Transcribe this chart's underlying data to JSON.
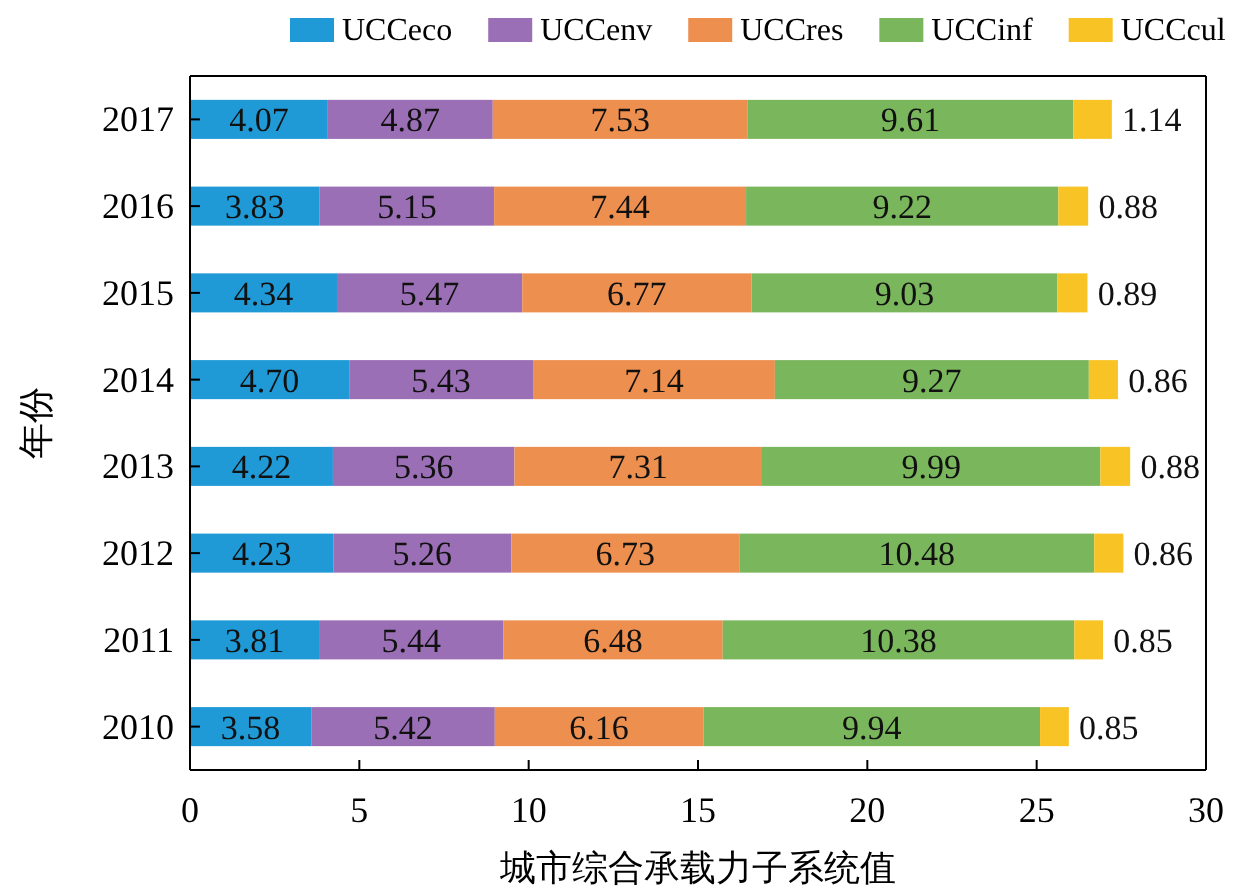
{
  "chart_data": {
    "type": "bar",
    "orientation": "horizontal",
    "stacked": true,
    "xlabel": "城市综合承载力子系统值",
    "ylabel": "年份",
    "categories": [
      "2017",
      "2016",
      "2015",
      "2014",
      "2013",
      "2012",
      "2011",
      "2010"
    ],
    "series": [
      {
        "name": "UCCeco",
        "color": "#1f9ad6",
        "values": [
          4.07,
          3.83,
          4.34,
          4.7,
          4.22,
          4.23,
          3.81,
          3.58
        ],
        "value_labels": [
          "4.07",
          "3.83",
          "4.34",
          "4.70",
          "4.22",
          "4.23",
          "3.81",
          "3.58"
        ]
      },
      {
        "name": "UCCenv",
        "color": "#9b6fb5",
        "values": [
          4.87,
          5.15,
          5.47,
          5.43,
          5.36,
          5.26,
          5.44,
          5.42
        ],
        "value_labels": [
          "4.87",
          "5.15",
          "5.47",
          "5.43",
          "5.36",
          "5.26",
          "5.44",
          "5.42"
        ]
      },
      {
        "name": "UCCres",
        "color": "#ec8f4f",
        "values": [
          7.53,
          7.44,
          6.77,
          7.14,
          7.31,
          6.73,
          6.48,
          6.16
        ],
        "value_labels": [
          "7.53",
          "7.44",
          "6.77",
          "7.14",
          "7.31",
          "6.73",
          "6.48",
          "6.16"
        ]
      },
      {
        "name": "UCCinf",
        "color": "#7ab65c",
        "values": [
          9.61,
          9.22,
          9.03,
          9.27,
          9.99,
          10.48,
          10.38,
          9.94
        ],
        "value_labels": [
          "9.61",
          "9.22",
          "9.03",
          "9.27",
          "9.99",
          "10.48",
          "10.38",
          "9.94"
        ]
      },
      {
        "name": "UCCcul",
        "color": "#f7c325",
        "values": [
          1.14,
          0.88,
          0.89,
          0.86,
          0.88,
          0.86,
          0.85,
          0.85
        ],
        "value_labels": [
          "1.14",
          "0.88",
          "0.89",
          "0.86",
          "0.88",
          "0.86",
          "0.85",
          "0.85"
        ]
      }
    ],
    "xlim": [
      0,
      30
    ],
    "xticks": [
      0,
      5,
      10,
      15,
      20,
      25,
      30
    ],
    "grid": false,
    "legend": "top"
  }
}
